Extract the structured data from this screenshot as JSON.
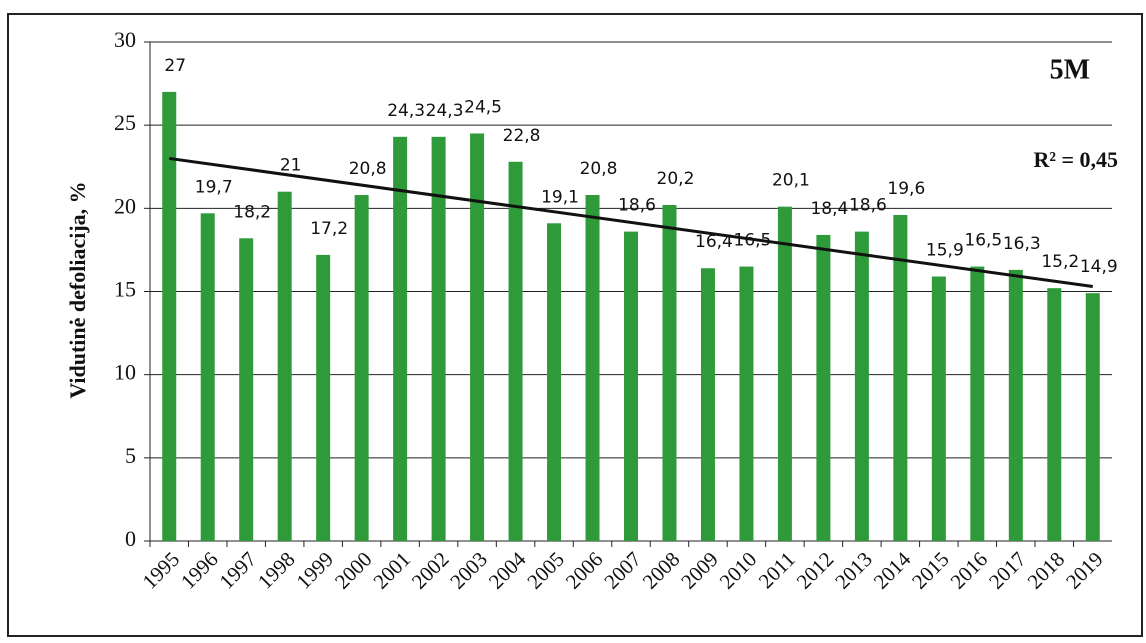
{
  "chart_data": {
    "type": "bar",
    "ylabel": "Vidutinė defoliacija, %",
    "annotations": [
      "5M",
      "R² = 0,45"
    ],
    "categories": [
      "1995",
      "1996",
      "1997",
      "1998",
      "1999",
      "2000",
      "2001",
      "2002",
      "2003",
      "2004",
      "2005",
      "2006",
      "2007",
      "2008",
      "2009",
      "2010",
      "2011",
      "2012",
      "2013",
      "2014",
      "2015",
      "2016",
      "2017",
      "2018",
      "2019"
    ],
    "values": [
      27,
      19.7,
      18.2,
      21,
      17.2,
      20.8,
      24.3,
      24.3,
      24.5,
      22.8,
      19.1,
      20.8,
      18.6,
      20.2,
      16.4,
      16.5,
      20.1,
      18.4,
      18.6,
      19.6,
      15.9,
      16.5,
      16.3,
      15.2,
      14.9
    ],
    "value_labels": [
      "27",
      "19,7",
      "18,2",
      "21",
      "17,2",
      "20,8",
      "24,3",
      "24,3",
      "24,5",
      "22,8",
      "19,1",
      "20,8",
      "18,6",
      "20,2",
      "16,4",
      "16,5",
      "20,1",
      "18,4",
      "18,6",
      "19,6",
      "15,9",
      "16,5",
      "16,3",
      "15,2",
      "14,9"
    ],
    "color": "#2f9a3a",
    "trendline": {
      "start": 23,
      "end": 15.3
    },
    "ylim": [
      0,
      30
    ],
    "yticks": [
      0,
      5,
      10,
      15,
      20,
      25,
      30
    ],
    "grid": true
  }
}
